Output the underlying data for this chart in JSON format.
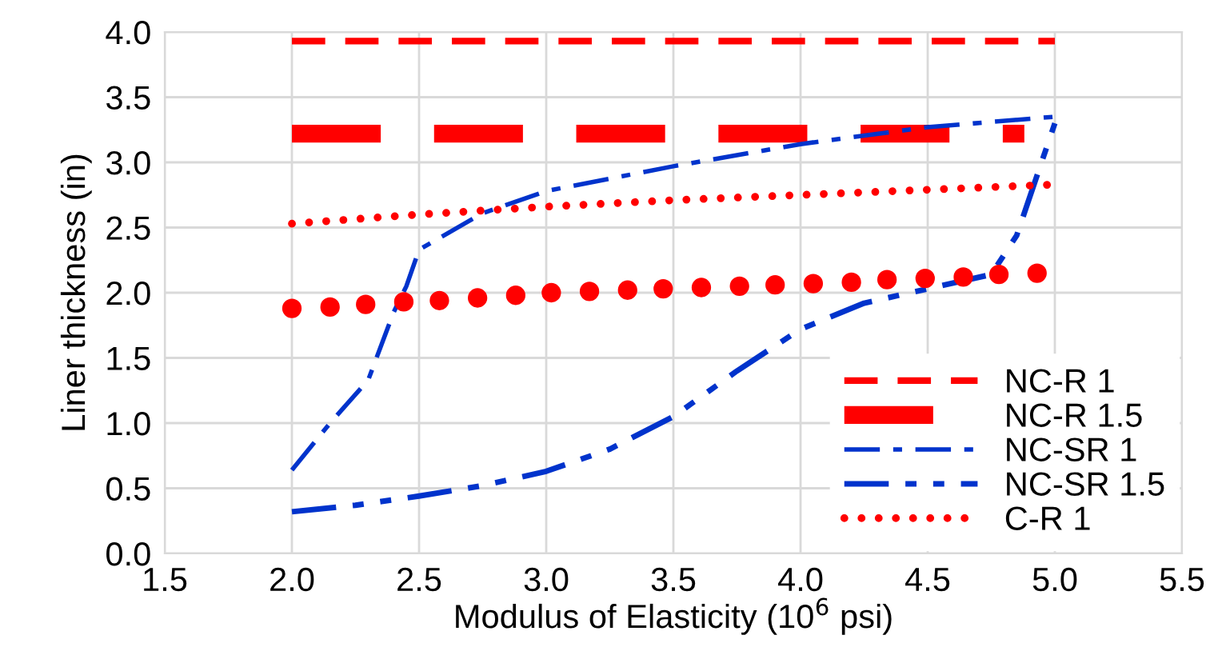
{
  "chart_data": {
    "type": "line",
    "xlabel": "Modulus of Elasticity (10$^{6}$ psi)",
    "ylabel": "Liner thickness (in)",
    "xlim": [
      1.5,
      5.5
    ],
    "xticks": [
      {
        "value": 1.5,
        "label": "1.5"
      },
      {
        "value": 2,
        "label": "2.0"
      },
      {
        "value": 2.5,
        "label": "2.5"
      },
      {
        "value": 3,
        "label": "3.0"
      },
      {
        "value": 3.5,
        "label": "3.5"
      },
      {
        "value": 4,
        "label": "4.0"
      },
      {
        "value": 4.5,
        "label": "4.5"
      },
      {
        "value": 5,
        "label": "5.0"
      },
      {
        "value": 5.5,
        "label": "5.5"
      }
    ],
    "ylim": [
      0,
      4
    ],
    "yticks": [
      {
        "value": 0,
        "label": "0.0"
      },
      {
        "value": 0.5,
        "label": "0.5"
      },
      {
        "value": 1,
        "label": "1.0"
      },
      {
        "value": 1.5,
        "label": "1.5"
      },
      {
        "value": 2,
        "label": "2.0"
      },
      {
        "value": 2.5,
        "label": "2.5"
      },
      {
        "value": 3,
        "label": "3.0"
      },
      {
        "value": 3.5,
        "label": "3.5"
      },
      {
        "value": 4,
        "label": "4.0"
      }
    ],
    "grid": true,
    "legend": "bottom right",
    "marker": "none",
    "series": [
      {
        "name": "NC-R 1",
        "color": "#ff0000",
        "line_style": "dashed",
        "x": [
          2,
          5
        ],
        "values": [
          3.93,
          3.93
        ]
      },
      {
        "name": "NC-R 1.5",
        "color": "#ff0000",
        "line_style": "dashed",
        "x": [
          2,
          4.88
        ],
        "values": [
          3.22,
          3.22
        ]
      },
      {
        "name": "NC-SR 1",
        "color": "#0033cc",
        "line_style": "dashdot",
        "x": [
          2,
          2.15,
          2.3,
          2.4,
          2.45,
          2.5,
          2.75,
          3,
          3.5,
          4,
          4.5,
          5
        ],
        "values": [
          0.64,
          1.0,
          1.33,
          1.85,
          2.05,
          2.33,
          2.61,
          2.78,
          2.97,
          3.14,
          3.27,
          3.35
        ]
      },
      {
        "name": "NC-SR 1.5",
        "color": "#0033cc",
        "line_style": "dashdotdot",
        "x": [
          2,
          2.25,
          2.5,
          2.75,
          3,
          3.25,
          3.5,
          3.75,
          4,
          4.25,
          4.5,
          4.75,
          4.85,
          5
        ],
        "values": [
          0.32,
          0.37,
          0.44,
          0.52,
          0.63,
          0.8,
          1.05,
          1.4,
          1.72,
          1.92,
          2.03,
          2.14,
          2.44,
          3.3
        ]
      },
      {
        "name": "C-R 1",
        "color": "#ff0000",
        "line_style": "dotted",
        "x": [
          2,
          2.5,
          3,
          3.5,
          4,
          4.5,
          5
        ],
        "values": [
          2.53,
          2.6,
          2.66,
          2.71,
          2.75,
          2.79,
          2.83
        ]
      },
      {
        "type": "scatter",
        "color": "#ff0000",
        "marker": "circle",
        "x": [
          2,
          2.15,
          2.29,
          2.44,
          2.58,
          2.73,
          2.88,
          3.02,
          3.17,
          3.32,
          3.46,
          3.61,
          3.76,
          3.9,
          4.05,
          4.2,
          4.34,
          4.49,
          4.64,
          4.78,
          4.93
        ],
        "values": [
          1.88,
          1.89,
          1.91,
          1.93,
          1.94,
          1.96,
          1.98,
          2.0,
          2.01,
          2.02,
          2.03,
          2.04,
          2.05,
          2.06,
          2.07,
          2.08,
          2.1,
          2.11,
          2.12,
          2.14,
          2.15
        ]
      }
    ]
  }
}
